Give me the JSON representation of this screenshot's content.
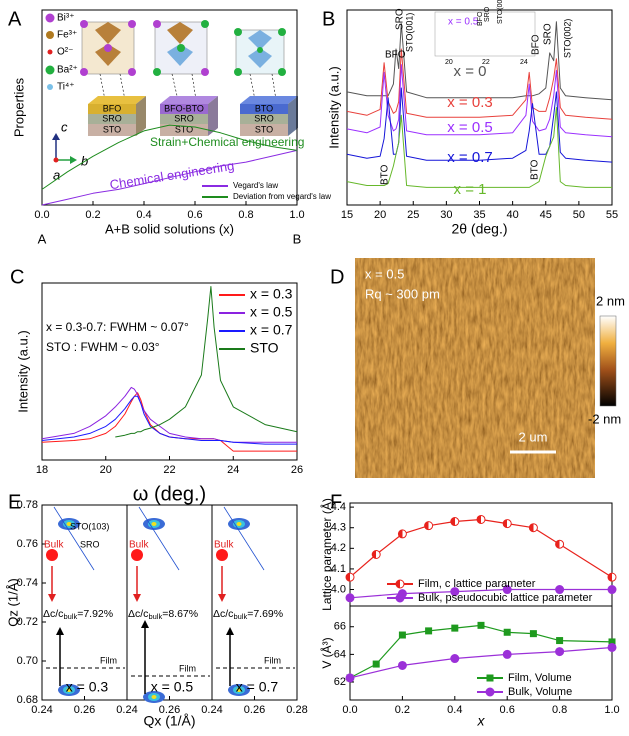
{
  "panel_labels": [
    "A",
    "B",
    "C",
    "D",
    "E",
    "F"
  ],
  "schematic": {
    "ions": [
      "Bi³⁺",
      "Fe³⁺",
      "O²⁻",
      "Ba²⁺",
      "Ti⁴⁺"
    ],
    "stacks": [
      [
        "BFO",
        "SRO",
        "STO"
      ],
      [
        "BFO-BTO",
        "SRO",
        "STO"
      ],
      [
        "BTO",
        "SRO",
        "STO"
      ]
    ],
    "axes": [
      "c",
      "b",
      "a"
    ]
  },
  "chart_data": [
    {
      "type": "line",
      "xlabel": "A+B solid solutions (x)",
      "ylabel": "Properties",
      "x": [
        0,
        0.1,
        0.2,
        0.3,
        0.4,
        0.5,
        0.6,
        0.7,
        0.8,
        0.9,
        1.0
      ],
      "xlim": [
        0,
        1
      ],
      "ylim": [
        0,
        1
      ],
      "xticks": [
        {
          "value": 0,
          "label": "0.0"
        },
        0.2,
        0.4,
        0.6,
        0.8,
        {
          "value": 1,
          "label": "1.0"
        }
      ],
      "legend": "lower right",
      "series": [
        {
          "name": "Vegard's law",
          "color": "#8a2be2",
          "values": [
            0,
            0.03,
            0.06,
            0.08,
            0.11,
            0.14,
            0.17,
            0.2,
            0.22,
            0.25,
            0.28
          ]
        },
        {
          "name": "Deviation from vegard's law",
          "color": "#1e8c1e",
          "values": [
            0.08,
            0.17,
            0.25,
            0.32,
            0.38,
            0.41,
            0.4,
            0.37,
            0.33,
            0.3,
            0.28
          ]
        }
      ],
      "annotations": [
        "Chemical engineering",
        "Strain+Chemical engineering",
        "A",
        "B"
      ]
    },
    {
      "type": "line",
      "xlabel": "2θ (deg.)",
      "ylabel": "Intensity (a.u.)",
      "x": [
        15,
        18,
        20,
        20.6,
        21.2,
        22,
        22.4,
        22.8,
        23.2,
        24,
        27,
        30,
        35,
        40,
        42,
        42.5,
        43,
        44,
        45,
        45.6,
        46.2,
        46.6,
        47.2,
        48,
        51,
        55
      ],
      "xlim": [
        15,
        55
      ],
      "ylim": [
        0,
        10
      ],
      "xticks": [
        15,
        20,
        25,
        30,
        35,
        40,
        45,
        50,
        55
      ],
      "series": [
        {
          "name": "x = 0",
          "color": "#555555",
          "values": [
            5.8,
            5.6,
            5.6,
            5.6,
            5.6,
            6.2,
            8.0,
            7.0,
            9.3,
            5.8,
            5.5,
            5.5,
            5.5,
            5.5,
            5.6,
            5.6,
            5.6,
            5.7,
            6.0,
            7.8,
            7.4,
            9.4,
            6.0,
            5.6,
            5.5,
            5.4
          ]
        },
        {
          "name": "x = 0.3",
          "color": "#e8413c",
          "values": [
            4.8,
            4.6,
            4.9,
            7.3,
            5.3,
            4.7,
            4.8,
            5.3,
            8.0,
            4.7,
            4.5,
            4.5,
            4.5,
            4.6,
            5.4,
            6.8,
            5.0,
            4.8,
            4.8,
            5.5,
            6.5,
            7.5,
            5.0,
            4.6,
            4.5,
            4.4
          ]
        },
        {
          "name": "x = 0.5",
          "color": "#9b30ff",
          "values": [
            3.9,
            3.7,
            4.0,
            6.8,
            4.6,
            3.8,
            3.9,
            4.4,
            7.2,
            3.8,
            3.6,
            3.6,
            3.6,
            3.7,
            4.6,
            6.2,
            4.3,
            3.8,
            3.9,
            4.4,
            5.6,
            6.9,
            4.0,
            3.7,
            3.6,
            3.5
          ]
        },
        {
          "name": "x = 0.7",
          "color": "#1515d8",
          "values": [
            2.6,
            2.4,
            2.5,
            3.4,
            5.5,
            2.6,
            2.6,
            3.2,
            6.0,
            2.5,
            2.3,
            2.3,
            2.3,
            2.4,
            2.8,
            3.8,
            5.2,
            2.6,
            2.6,
            3.0,
            4.6,
            5.8,
            2.7,
            2.4,
            2.3,
            2.2
          ]
        },
        {
          "name": "x = 1",
          "color": "#66b82a",
          "values": [
            1.2,
            1.0,
            1.0,
            1.0,
            1.1,
            2.0,
            2.6,
            3.2,
            4.6,
            1.0,
            0.9,
            0.9,
            0.9,
            0.9,
            0.9,
            0.9,
            1.0,
            1.2,
            2.5,
            3.0,
            3.5,
            5.0,
            1.2,
            1.0,
            0.9,
            0.9
          ]
        }
      ],
      "annotations": [
        "BFO",
        "SRO",
        "STO(001)",
        "BFO",
        "SRO",
        "STO(002)",
        "BTO",
        "BTO",
        "x = 0.5",
        "BFO",
        "SRO",
        "STO(001)",
        "20",
        "22",
        "24"
      ]
    },
    {
      "type": "line",
      "xlabel": "ω (deg.)",
      "ylabel": "Intensity (a.u.)",
      "x": [
        18,
        19,
        19.5,
        20,
        20.3,
        20.6,
        20.8,
        20.9,
        21,
        21.1,
        21.2,
        21.4,
        21.7,
        22,
        22.5,
        23,
        23.2,
        23.3,
        23.4,
        23.6,
        24,
        25,
        26
      ],
      "xlim": [
        18,
        26
      ],
      "ylim": [
        0,
        10
      ],
      "xticks": [
        18,
        20,
        22,
        24,
        26
      ],
      "legend": "upper right",
      "series": [
        {
          "name": "x = 0.3",
          "color": "#ff1a1a",
          "values": [
            1.0,
            1.1,
            1.2,
            1.5,
            1.9,
            2.6,
            3.3,
            3.6,
            3.8,
            3.4,
            2.8,
            2.0,
            1.5,
            1.3,
            1.2,
            1.2,
            1.2,
            1.2,
            1.2,
            1.1,
            0.5,
            0.5,
            0.5
          ]
        },
        {
          "name": "x = 0.5",
          "color": "#8b22e0",
          "values": [
            1.2,
            1.5,
            1.9,
            2.5,
            3.0,
            3.6,
            4.1,
            4.0,
            3.7,
            3.2,
            2.8,
            2.3,
            1.9,
            1.5,
            1.3,
            1.2,
            1.2,
            1.2,
            1.2,
            1.1,
            1.0,
            1.0,
            1.0
          ]
        },
        {
          "name": "x = 0.7",
          "color": "#1a1aff",
          "values": [
            1.1,
            1.3,
            1.5,
            1.9,
            2.3,
            2.9,
            3.4,
            3.6,
            3.6,
            3.2,
            2.6,
            1.9,
            1.5,
            1.3,
            1.2,
            1.1,
            1.1,
            1.1,
            1.1,
            1.1,
            1.0,
            0.9,
            0.9
          ]
        },
        {
          "name": "STO",
          "color": "#1a7a1a",
          "values": [
            null,
            null,
            null,
            null,
            1.3,
            1.4,
            1.5,
            1.5,
            1.6,
            1.6,
            1.7,
            1.8,
            2.0,
            2.3,
            3.0,
            4.8,
            8.0,
            9.8,
            7.5,
            4.5,
            3.0,
            2.0,
            1.6
          ]
        }
      ],
      "annotations": [
        "x = 0.3-0.7: FWHM ~ 0.07°",
        "STO : FWHM ~ 0.03°"
      ]
    },
    {
      "type": "line",
      "ylabel": "Lattice parameter (Å)",
      "xlim": [
        0,
        1
      ],
      "ylim": [
        3.92,
        4.42
      ],
      "yticks": [
        {
          "value": 4.0,
          "label": "4.0"
        },
        4.1,
        4.2,
        4.3,
        4.4
      ],
      "legend": "lower right",
      "series": [
        {
          "name": "Film, c lattice parameter",
          "color": "#e8221c",
          "marker": "half-circle",
          "x": [
            0,
            0.1,
            0.2,
            0.3,
            0.4,
            0.5,
            0.6,
            0.7,
            0.8,
            1.0
          ],
          "values": [
            4.06,
            4.17,
            4.27,
            4.31,
            4.33,
            4.34,
            4.32,
            4.3,
            4.22,
            4.06
          ]
        },
        {
          "name": "Bulk, pseudocubic lattice parameter",
          "color": "#9b30d8",
          "marker": "circle",
          "x": [
            0,
            0.2,
            0.4,
            0.6,
            0.8,
            1.0
          ],
          "values": [
            3.96,
            3.98,
            3.99,
            4.0,
            4.0,
            4.0
          ]
        }
      ]
    },
    {
      "type": "line",
      "xlabel": "x",
      "ylabel": "V (Å³)",
      "xlim": [
        0,
        1
      ],
      "ylim": [
        60.7,
        67.5
      ],
      "xticks": [
        {
          "value": 0,
          "label": "0.0"
        },
        0.2,
        0.4,
        0.6,
        0.8,
        {
          "value": 1,
          "label": "1.0"
        }
      ],
      "yticks": [
        62,
        64,
        66
      ],
      "legend": "lower right",
      "series": [
        {
          "name": "Film, Volume",
          "color": "#1e9a1e",
          "marker": "square",
          "x": [
            0,
            0.1,
            0.2,
            0.3,
            0.4,
            0.5,
            0.6,
            0.7,
            0.8,
            1.0
          ],
          "values": [
            62.3,
            63.3,
            65.4,
            65.7,
            65.9,
            66.1,
            65.6,
            65.5,
            65.0,
            64.9
          ]
        },
        {
          "name": "Bulk, Volume",
          "color": "#9b30d8",
          "marker": "circle",
          "x": [
            0,
            0.2,
            0.4,
            0.6,
            0.8,
            1.0
          ],
          "values": [
            62.3,
            63.2,
            63.7,
            64.0,
            64.2,
            64.5
          ]
        }
      ]
    }
  ],
  "afm": {
    "texts": [
      "x = 0.5",
      "Rq ~ 300 pm"
    ],
    "scale_bar": "2 um",
    "colorbar": [
      "2 nm",
      "-2 nm"
    ]
  },
  "rsm": {
    "xlabel": "Qx (1/Å)",
    "ylabel": "Qz (1/Å)",
    "ylim": [
      0.68,
      0.78
    ],
    "yticks": [
      0.68,
      {
        "value": 0.7,
        "label": "0.70"
      },
      0.72,
      0.74,
      0.76,
      0.78
    ],
    "panels": [
      {
        "xlim": [
          0.24,
          0.28
        ],
        "xticks": [
          0.24,
          0.26
        ],
        "label": "x = 0.3",
        "strain": [
          "Δc/c",
          "bulk",
          "=7.92%"
        ],
        "texts": [
          "STO(103)",
          "SRO",
          "Bulk",
          "Film"
        ]
      },
      {
        "xlim": [
          0.24,
          0.28
        ],
        "xticks": [
          0.24,
          0.26
        ],
        "label": "x = 0.5",
        "strain": [
          "Δc/c",
          "bulk",
          "=8.67%"
        ],
        "texts": [
          "Bulk",
          "Film"
        ]
      },
      {
        "xlim": [
          0.24,
          0.28
        ],
        "xticks": [
          0.24,
          0.26,
          0.28
        ],
        "label": "x = 0.7",
        "strain": [
          "Δc/c",
          "bulk",
          "=7.69%"
        ],
        "texts": [
          "Bulk",
          "Film"
        ]
      }
    ]
  }
}
